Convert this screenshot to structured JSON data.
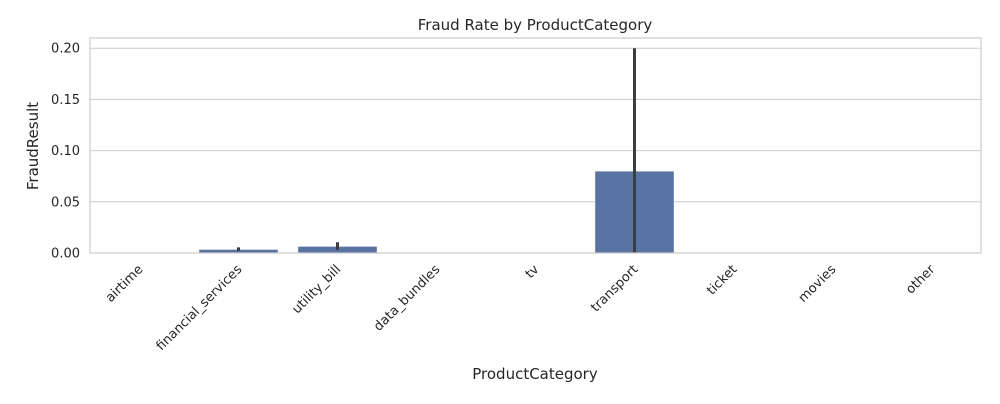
{
  "chart_data": {
    "type": "bar",
    "title": "Fraud Rate by ProductCategory",
    "xlabel": "ProductCategory",
    "ylabel": "FraudResult",
    "categories": [
      "airtime",
      "financial_services",
      "utility_bill",
      "data_bundles",
      "tv",
      "transport",
      "ticket",
      "movies",
      "other"
    ],
    "values": [
      0.0,
      0.0035,
      0.0065,
      0.0,
      0.0,
      0.08,
      0.0,
      0.0,
      0.0
    ],
    "error_low": [
      0.0,
      0.002,
      0.003,
      0.0,
      0.0,
      0.0,
      0.0,
      0.0,
      0.0
    ],
    "error_high": [
      0.0,
      0.0055,
      0.0105,
      0.0,
      0.0,
      0.2,
      0.0,
      0.0,
      0.0
    ],
    "ylim": [
      0,
      0.21
    ],
    "yticks": [
      "0.00",
      "0.05",
      "0.10",
      "0.15",
      "0.20"
    ],
    "ytick_values": [
      0,
      0.05,
      0.1,
      0.15,
      0.2
    ],
    "grid": true,
    "colors": {
      "bar": "#5874a5",
      "errorbar": "#3d3d3d",
      "grid": "#cccccc"
    }
  }
}
